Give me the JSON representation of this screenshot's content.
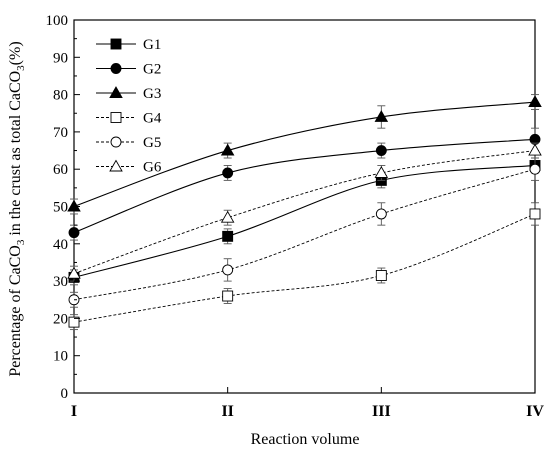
{
  "chart_data": {
    "type": "line",
    "title": "",
    "xlabel": "Reaction volume",
    "ylabel_parts": [
      "Percentage of CaCO",
      "3",
      " in the crust as total CaCO",
      "3",
      "(%)"
    ],
    "ylim": [
      0,
      100
    ],
    "yticks": [
      0,
      10,
      20,
      30,
      40,
      50,
      60,
      70,
      80,
      90,
      100
    ],
    "categories": [
      "I",
      "II",
      "III",
      "IV"
    ],
    "grid": false,
    "legend_position": "top-left",
    "series": [
      {
        "name": "G1",
        "marker": "filled-square",
        "line": "solid",
        "values": [
          31,
          42,
          57,
          61
        ],
        "errors": [
          2,
          2,
          2,
          2
        ]
      },
      {
        "name": "G2",
        "marker": "filled-circle",
        "line": "solid",
        "values": [
          43,
          59,
          65,
          68
        ],
        "errors": [
          2,
          2,
          2,
          3
        ]
      },
      {
        "name": "G3",
        "marker": "filled-triangle",
        "line": "solid",
        "values": [
          50,
          65,
          74,
          78
        ],
        "errors": [
          2,
          2,
          3,
          2
        ]
      },
      {
        "name": "G4",
        "marker": "open-square",
        "line": "dashed",
        "values": [
          19,
          26,
          31.5,
          48
        ],
        "errors": [
          2,
          2,
          2,
          3
        ]
      },
      {
        "name": "G5",
        "marker": "open-circle",
        "line": "dashed",
        "values": [
          25,
          33,
          48,
          60
        ],
        "errors": [
          2,
          3,
          3,
          3
        ]
      },
      {
        "name": "G6",
        "marker": "open-triangle",
        "line": "dashed",
        "values": [
          32,
          47,
          59,
          65
        ],
        "errors": [
          2,
          2,
          2,
          2
        ]
      }
    ]
  }
}
